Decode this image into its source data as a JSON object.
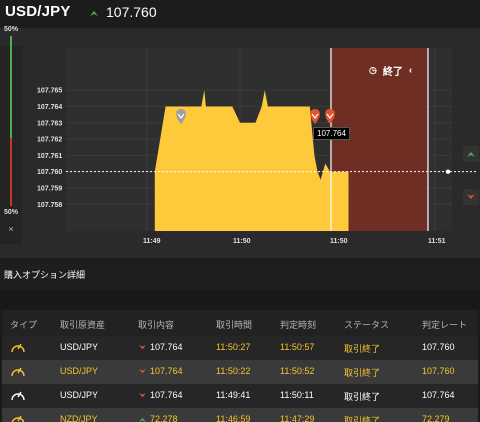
{
  "header": {
    "pair": "USD/JPY",
    "price": "107.760",
    "price_direction_icon": "up-arrow-icon",
    "up_color": "#4caf50",
    "down_color": "#e74c3c"
  },
  "chart_data": {
    "type": "area",
    "series_color": "#ffc93c",
    "expired_region_color": "#7a2e22",
    "y_ticks": [
      "107.765",
      "107.764",
      "107.763",
      "107.762",
      "107.761",
      "107.760",
      "107.759",
      "107.758"
    ],
    "x_ticks": [
      "11:49",
      "11:50",
      "11:50",
      "11:51"
    ],
    "series": [
      {
        "points": [
          [
            "11:49:05",
            107.76
          ],
          [
            "11:49:12",
            107.764
          ],
          [
            "11:49:35",
            107.764
          ],
          [
            "11:49:37",
            107.765
          ],
          [
            "11:49:38",
            107.764
          ],
          [
            "11:49:55",
            107.764
          ],
          [
            "11:50:00",
            107.763
          ],
          [
            "11:50:10",
            107.763
          ],
          [
            "11:50:14",
            107.764
          ],
          [
            "11:50:16",
            107.765
          ],
          [
            "11:50:18",
            107.764
          ],
          [
            "11:50:45",
            107.764
          ],
          [
            "11:50:48",
            107.761
          ],
          [
            "11:50:50",
            107.76
          ],
          [
            "11:50:52",
            107.7595
          ],
          [
            "11:50:55",
            107.7605
          ],
          [
            "11:50:58",
            107.76
          ],
          [
            "11:51:10",
            107.76
          ]
        ]
      }
    ],
    "current_price_line": 107.76,
    "end_label": "終了",
    "tooltip_value": "107.764"
  },
  "gauge": {
    "top_pct": "50%",
    "bottom_pct": "50%",
    "close_label": "×"
  },
  "section": {
    "title": "購入オプション詳細"
  },
  "table": {
    "headers": [
      "タイプ",
      "取引原資産",
      "取引内容",
      "取引時間",
      "判定時刻",
      "ステータス",
      "判定レート"
    ],
    "rows": [
      {
        "asset": "USD/JPY",
        "direction": "down",
        "content": "107.764",
        "time": "11:50:27",
        "judge": "11:50:57",
        "status": "取引終了",
        "rate": "107.760",
        "tone": "normal"
      },
      {
        "asset": "USD/JPY",
        "direction": "down",
        "content": "107.764",
        "time": "11:50:22",
        "judge": "11:50:52",
        "status": "取引終了",
        "rate": "107.760",
        "tone": "yellow"
      },
      {
        "asset": "USD/JPY",
        "direction": "down",
        "content": "107.764",
        "time": "11:49:41",
        "judge": "11:50:11",
        "status": "取引終了",
        "rate": "107.764",
        "tone": "white"
      },
      {
        "asset": "NZD/JPY",
        "direction": "up",
        "content": "72.278",
        "time": "11:46:59",
        "judge": "11:47:29",
        "status": "取引終了",
        "rate": "72.279",
        "tone": "yellow"
      }
    ]
  }
}
